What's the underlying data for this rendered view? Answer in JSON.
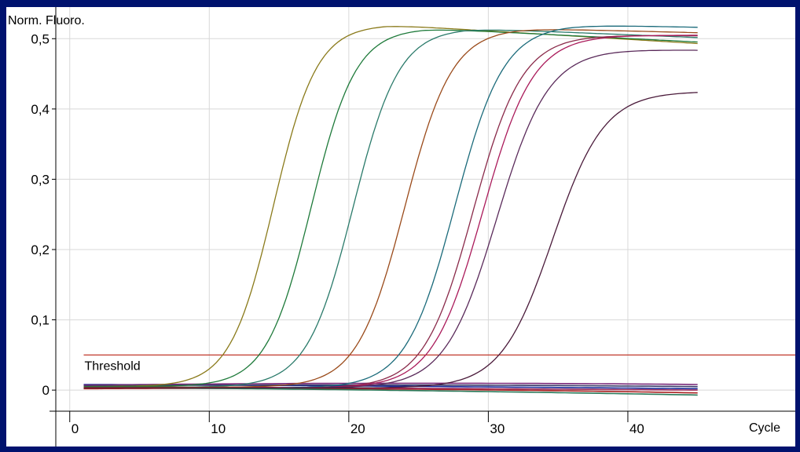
{
  "chart_data": {
    "type": "line",
    "title": "",
    "ylabel": "Norm. Fluoro.",
    "xlabel": "Cycle",
    "xlim": [
      -1,
      52
    ],
    "ylim": [
      -0.03,
      0.545
    ],
    "x_ticks": [
      0,
      10,
      20,
      30,
      40
    ],
    "x_tick_labels": [
      "0",
      "10",
      "20",
      "30",
      "40"
    ],
    "y_ticks": [
      0,
      0.1,
      0.2,
      0.3,
      0.4,
      0.5
    ],
    "y_tick_labels": [
      "0",
      "0,1",
      "0,2",
      "0,3",
      "0,4",
      "0,5"
    ],
    "grid": true,
    "x_range": [
      1,
      45
    ],
    "threshold": {
      "label": "Threshold",
      "value": 0.05,
      "color": "#c0392b"
    },
    "series": [
      {
        "color": "#8a7a1a",
        "base": 0.005,
        "plateau": 0.52,
        "midpoint": 14.6,
        "slope": 1.55,
        "tail": -0.0012
      },
      {
        "color": "#1e7a3a",
        "base": 0.005,
        "plateau": 0.515,
        "midpoint": 17.3,
        "slope": 1.6,
        "tail": -0.001
      },
      {
        "color": "#2a7a6a",
        "base": 0.004,
        "plateau": 0.515,
        "midpoint": 20.3,
        "slope": 1.65,
        "tail": -0.0008
      },
      {
        "color": "#9a4a1a",
        "base": 0.004,
        "plateau": 0.515,
        "midpoint": 24.0,
        "slope": 1.7,
        "tail": -0.0005
      },
      {
        "color": "#1a6a7a",
        "base": 0.003,
        "plateau": 0.52,
        "midpoint": 27.6,
        "slope": 1.75,
        "tail": -0.0004
      },
      {
        "color": "#8a2a4a",
        "base": 0.003,
        "plateau": 0.505,
        "midpoint": 28.9,
        "slope": 1.75,
        "tail": -0.0001
      },
      {
        "color": "#aa1a5a",
        "base": 0.003,
        "plateau": 0.505,
        "midpoint": 29.6,
        "slope": 1.8,
        "tail": 0.0
      },
      {
        "color": "#5a2a5a",
        "base": 0.003,
        "plateau": 0.485,
        "midpoint": 30.6,
        "slope": 1.85,
        "tail": -0.0002
      },
      {
        "color": "#4a1a3a",
        "base": 0.003,
        "plateau": 0.425,
        "midpoint": 34.6,
        "slope": 1.85,
        "tail": 0.0
      }
    ],
    "negatives": [
      {
        "color": "#1a2a9a",
        "y0": 0.008,
        "y1": 0.002,
        "mid": 0.006
      },
      {
        "color": "#7a2a7a",
        "y0": 0.007,
        "y1": 0.008,
        "mid": 0.012
      },
      {
        "color": "#aa2222",
        "y0": 0.002,
        "y1": -0.004,
        "mid": 0.004
      },
      {
        "color": "#2a7a5a",
        "y0": 0.004,
        "y1": -0.007,
        "mid": 0.001
      },
      {
        "color": "#3a3a6a",
        "y0": 0.006,
        "y1": 0.005,
        "mid": 0.009
      },
      {
        "color": "#9a2a5a",
        "y0": 0.005,
        "y1": 0.0,
        "mid": 0.003
      }
    ]
  }
}
